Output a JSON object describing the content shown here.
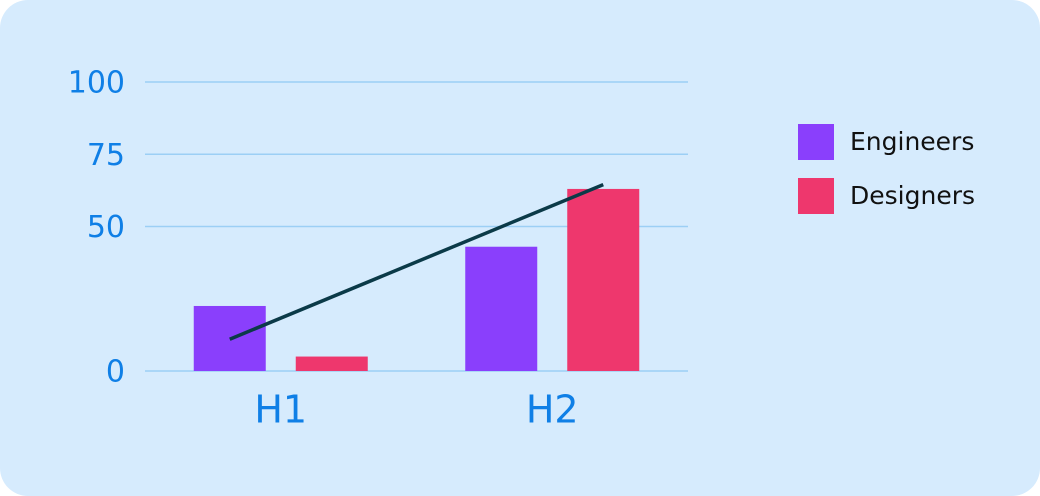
{
  "chart_data": {
    "type": "bar",
    "categories": [
      "H1",
      "H2"
    ],
    "series": [
      {
        "name": "Engineers",
        "color": "#8a3ffc",
        "values": [
          22.5,
          43
        ]
      },
      {
        "name": "Designers",
        "color": "#ee376d",
        "values": [
          5,
          63
        ]
      }
    ],
    "trend": {
      "type": "line",
      "color": "#0b3a48",
      "values": [
        11,
        64.5
      ]
    },
    "ylim": [
      0,
      100
    ],
    "yticks": [
      0,
      50,
      75,
      100
    ],
    "grid": true,
    "legend": "right"
  }
}
